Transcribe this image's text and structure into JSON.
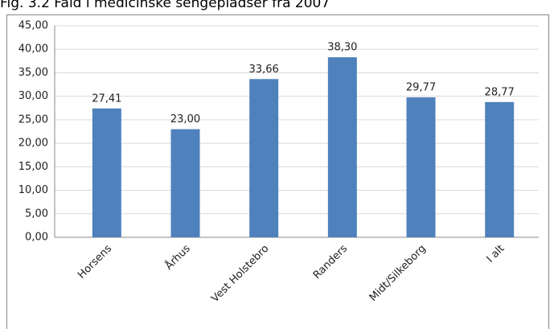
{
  "chart_data": {
    "type": "bar",
    "title": "Fig. 3.2 Fald i medicinske sengepladser fra 2007",
    "categories": [
      "Horsens",
      "Århus",
      "Vest Holstebro",
      "Randers",
      "Midt/Silkeborg",
      "I alt"
    ],
    "values": [
      27.41,
      23.0,
      33.66,
      38.3,
      29.77,
      28.77
    ],
    "value_labels": [
      "27,41",
      "23,00",
      "33,66",
      "38,30",
      "29,77",
      "28,77"
    ],
    "color": "#4f81bd",
    "ylim": [
      0,
      45
    ],
    "yticks": [
      {
        "value": 0,
        "label": "0,00"
      },
      {
        "value": 5,
        "label": "5,00"
      },
      {
        "value": 10,
        "label": "10,00"
      },
      {
        "value": 15,
        "label": "15,00"
      },
      {
        "value": 20,
        "label": "20,00"
      },
      {
        "value": 25,
        "label": "25,00"
      },
      {
        "value": 30,
        "label": "30,00"
      },
      {
        "value": 35,
        "label": "35,00"
      },
      {
        "value": 40,
        "label": "40,00"
      },
      {
        "value": 45,
        "label": "45,00"
      }
    ],
    "grid": true
  }
}
